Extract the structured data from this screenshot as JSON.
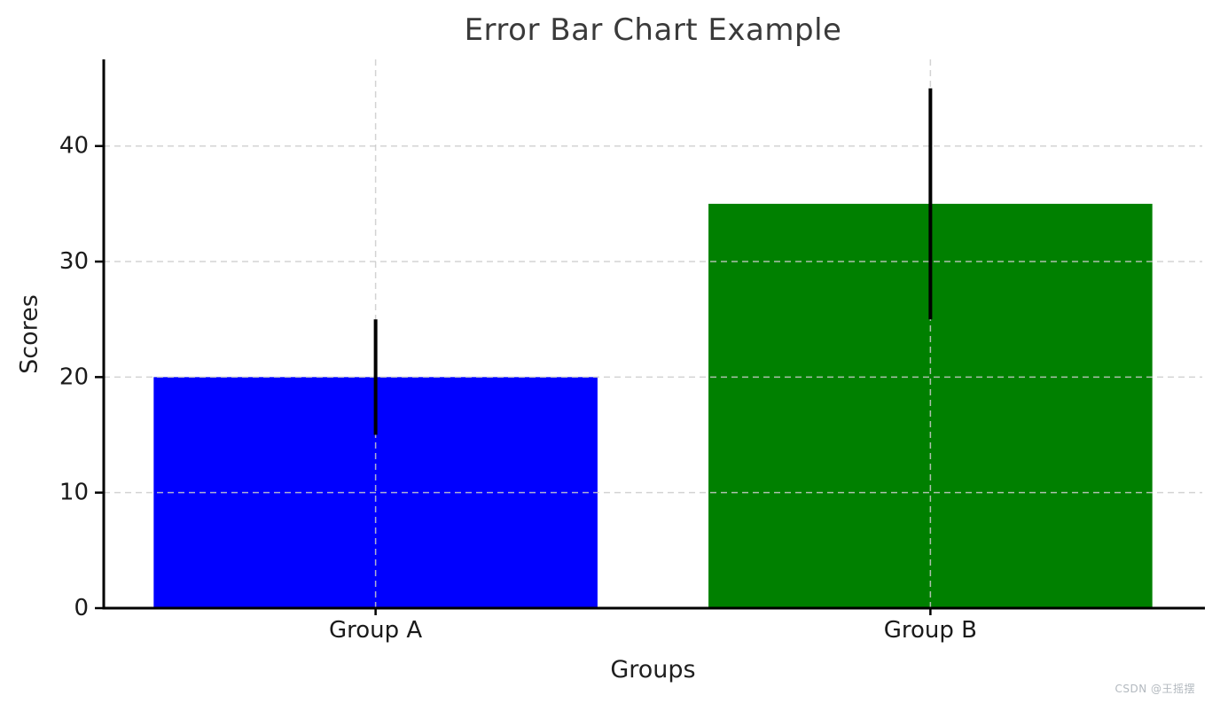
{
  "figure": {
    "watermark": "CSDN @王摇摆"
  },
  "chart_data": {
    "type": "bar",
    "title": "Error Bar Chart Example",
    "xlabel": "Groups",
    "ylabel": "Scores",
    "categories": [
      "Group A",
      "Group B"
    ],
    "values": [
      20,
      35
    ],
    "errors": [
      5,
      10
    ],
    "bar_colors": [
      "#0000ff",
      "#008000"
    ],
    "yticks": [
      0,
      10,
      20,
      30,
      40
    ],
    "ylim": [
      0,
      47.5
    ],
    "xlim": [
      -0.49,
      1.49
    ],
    "bar_width": 0.8,
    "grid": true,
    "grid_on_top_of_bars": true,
    "legend": false,
    "grid_color": "#cccccc",
    "error_bar_color": "#000000",
    "axis_color": "#000000",
    "tick_label_color": "#1a1a1a"
  }
}
